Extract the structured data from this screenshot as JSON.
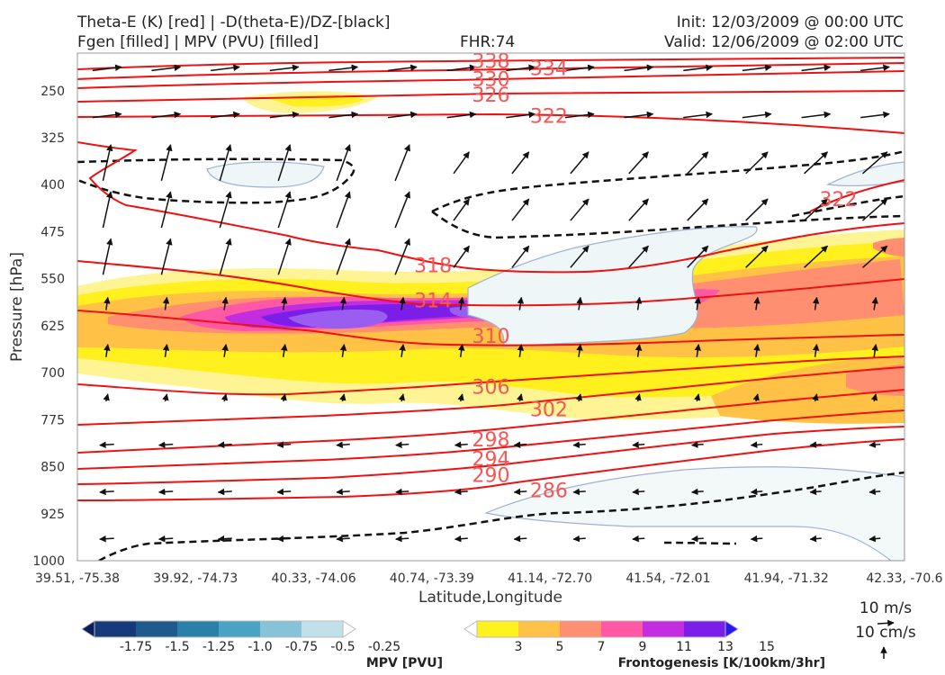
{
  "header": {
    "line1_left": "Theta-E (K) [red] | -D(theta-E)/DZ-[black]",
    "line2_left": "Fgen [filled] | MPV (PVU) [filled]",
    "fhr": "FHR:74",
    "init": "Init: 12/03/2009 @ 00:00 UTC",
    "valid": "Valid: 12/06/2009 @ 02:00 UTC"
  },
  "chart_data": {
    "type": "contour",
    "xlabel": "Latitude,Longitude",
    "ylabel": "Pressure [hPa]",
    "x_ticks": [
      "39.51, -75.38",
      "39.92, -74.73",
      "40.33, -74.06",
      "40.74, -73.39",
      "41.14, -72.70",
      "41.54, -72.01",
      "41.94, -71.32",
      "42.33, -70.6"
    ],
    "y_ticks": [
      250,
      325,
      400,
      475,
      550,
      625,
      700,
      775,
      850,
      925,
      1000
    ],
    "ylim": [
      190,
      1000
    ],
    "xlim": [
      0,
      1
    ],
    "theta_e_labels": [
      {
        "value": "338",
        "x": 0.5,
        "p": 202
      },
      {
        "value": "334",
        "x": 0.57,
        "p": 214
      },
      {
        "value": "330",
        "x": 0.5,
        "p": 231
      },
      {
        "value": "326",
        "x": 0.5,
        "p": 256
      },
      {
        "value": "322",
        "x": 0.57,
        "p": 290
      },
      {
        "value": "322",
        "x": 0.92,
        "p": 423
      },
      {
        "value": "318",
        "x": 0.43,
        "p": 528
      },
      {
        "value": "314",
        "x": 0.43,
        "p": 584
      },
      {
        "value": "310",
        "x": 0.5,
        "p": 641
      },
      {
        "value": "306",
        "x": 0.5,
        "p": 722
      },
      {
        "value": "302",
        "x": 0.57,
        "p": 758
      },
      {
        "value": "298",
        "x": 0.5,
        "p": 806
      },
      {
        "value": "294",
        "x": 0.5,
        "p": 837
      },
      {
        "value": "290",
        "x": 0.5,
        "p": 863
      },
      {
        "value": "286",
        "x": 0.57,
        "p": 887
      }
    ],
    "mpv_colorbar": {
      "label": "MPV [PVU]",
      "ticks": [
        "-1.75",
        "-1.5",
        "-1.25",
        "-1.0",
        "-0.75",
        "-0.5",
        "-0.25"
      ],
      "colors": [
        "#0a1f5c",
        "#173a7a",
        "#1f5a8e",
        "#2a80a8",
        "#4aa3c4",
        "#86c2d8",
        "#c2e0ea",
        "#ffffff"
      ]
    },
    "fgen_colorbar": {
      "label": "Frontogenesis [K/100km/3hr]",
      "ticks": [
        "3",
        "5",
        "7",
        "9",
        "11",
        "13",
        "15"
      ],
      "colors": [
        "#ffffff",
        "#fff21e",
        "#ffc146",
        "#ff8f70",
        "#ff58a5",
        "#c42ce0",
        "#7a1ee8",
        "#2a18f0"
      ]
    },
    "wind_reference": [
      "10 m/s",
      "10 cm/s"
    ]
  }
}
